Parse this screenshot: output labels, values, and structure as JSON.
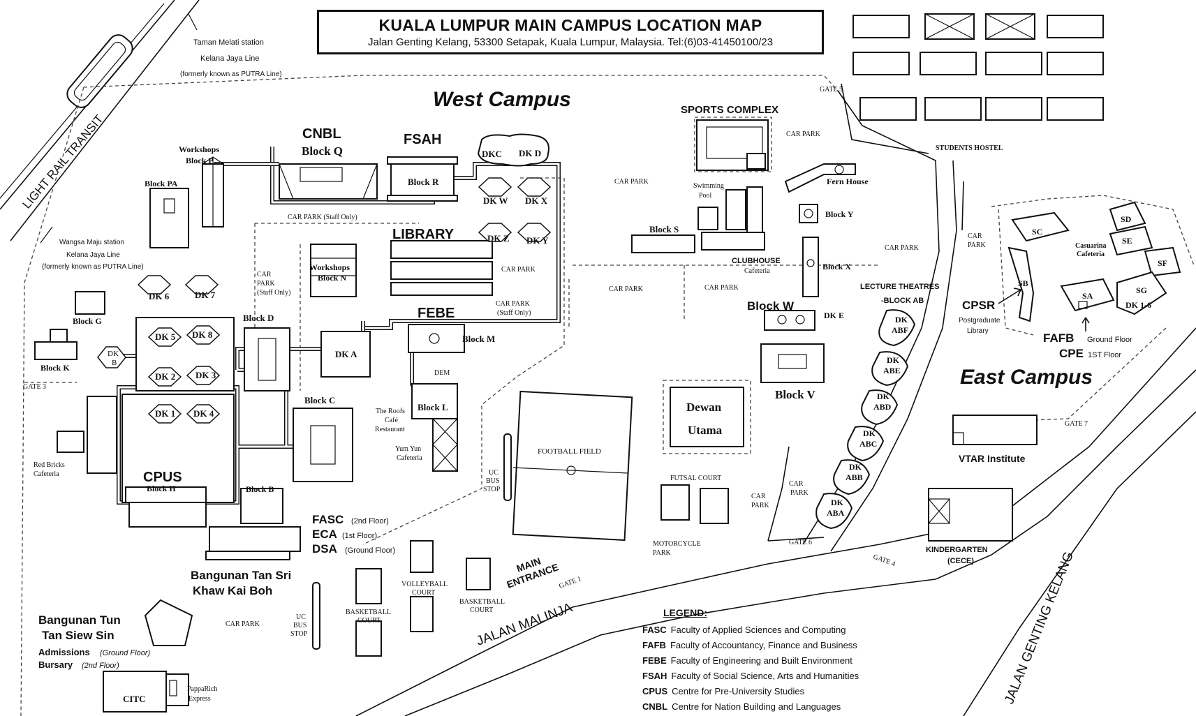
{
  "header": {
    "title": "KUALA LUMPUR MAIN CAMPUS LOCATION MAP",
    "address": "Jalan Genting Kelang, 53300 Setapak, Kuala Lumpur, Malaysia. Tel:(6)03-41450100/23"
  },
  "areas": {
    "west_campus": "West Campus",
    "east_campus": "East Campus"
  },
  "transit": {
    "lrt": "LIGHT RAIL TRANSIT",
    "taman_station": "Taman Melati station",
    "taman_line": "Kelana Jaya Line",
    "taman_formerly": "(formerly known as PUTRA Line)",
    "wangsa_station": "Wangsa Maju station",
    "wangsa_line": "Kelana Jaya Line",
    "wangsa_formerly": "(formerly known as PUTRA Line)"
  },
  "roads": {
    "jalan_malinja": "JALAN MALINJA",
    "jalan_genting_kelang": "JALAN GENTING KELANG",
    "main_entrance_1": "MAIN",
    "main_entrance_2": "ENTRANCE"
  },
  "gates": {
    "gate1": "GATE 1",
    "gate3": "GATE 3",
    "gate4": "GATE 4",
    "gate5": "GATE 5",
    "gate6": "GATE 6",
    "gate7": "GATE 7"
  },
  "buildings": {
    "cnbl": "CNBL",
    "block_q": "Block Q",
    "fsah": "FSAH",
    "block_r": "Block R",
    "dkc": "DKC",
    "dkd": "DK D",
    "dkw": "DK W",
    "dkx": "DK X",
    "dkz": "DK Z",
    "dky": "DK Y",
    "library": "LIBRARY",
    "febe": "FEBE",
    "block_m": "Block M",
    "dem": "DEM",
    "block_l": "Block  L",
    "roofs_1": "The Roofs",
    "roofs_2": "Café",
    "roofs_3": "Restaurant",
    "yumyun_1": "Yum Yun",
    "yumyun_2": "Cafeteria",
    "workshops_p_1": "Workshops",
    "workshops_p_2": "Block P",
    "block_pa": "Block PA",
    "workshops_n_1": "Workshops",
    "workshops_n_2": "Block N",
    "block_d": "Block D",
    "dka": "DK A",
    "block_c": "Block  C",
    "block_g": "Block G",
    "block_k": "Block K",
    "dkb_1": "DK",
    "dkb_2": "B",
    "dk6": "DK 6",
    "dk7": "DK 7",
    "dk5": "DK 5",
    "dk8": "DK 8",
    "dk2": "DK 2",
    "dk3": "DK 3",
    "dk1": "DK 1",
    "dk4": "DK 4",
    "cpus": "CPUS",
    "block_h": "Block H",
    "block_b": "Block B",
    "redbricks_1": "Red Bricks",
    "redbricks_2": "Cafeteria",
    "fasc": "FASC",
    "fasc_floor": "(2nd Floor)",
    "eca": "ECA",
    "eca_floor": "(1st Floor)",
    "dsa": "DSA",
    "dsa_floor": "(Ground Floor)",
    "bangunan_khaw_1": "Bangunan Tan Sri",
    "bangunan_khaw_2": "Khaw Kai Boh",
    "bangunan_tun_1": "Bangunan Tun",
    "bangunan_tun_2": "Tan Siew Sin",
    "admissions": "Admissions",
    "admissions_floor": "(Ground Floor)",
    "bursary": "Bursary",
    "bursary_floor": "(2nd Floor)",
    "citc": "CITC",
    "pappa_1": "PappaRich",
    "pappa_2": "Express",
    "sports_complex": "SPORTS COMPLEX",
    "swimming_1": "Swimming",
    "swimming_2": "Pool",
    "block_s": "Block S",
    "clubhouse": "CLUBHOUSE",
    "clubhouse_caf": "Cafeteria",
    "fern_house": "Fern House",
    "block_y": "Block Y",
    "block_x": "Block X",
    "block_w": "Block W",
    "dke": "DK E",
    "block_v": "Block V",
    "dewan_1": "Dewan",
    "dewan_2": "Utama",
    "football": "FOOTBALL FIELD",
    "futsal": "FUTSAL COURT",
    "motorcycle_1": "MOTORCYCLE",
    "motorcycle_2": "PARK",
    "uc_bus_1": "UC",
    "uc_bus_2": "BUS",
    "uc_bus_3": "STOP",
    "volleyball_1": "VOLLEYBALL",
    "volleyball_2": "COURT",
    "basketball_1": "BASKETBALL",
    "basketball_2": "COURT",
    "lecture_1": "LECTURE  THEATRES",
    "lecture_2": "-BLOCK AB",
    "dkabf_1": "DK",
    "dkabf_2": "ABF",
    "dkabe_1": "DK",
    "dkabe_2": "ABE",
    "dkabd_1": "DK",
    "dkabd_2": "ABD",
    "dkabc_1": "DK",
    "dkabc_2": "ABC",
    "dkabb_1": "DK",
    "dkabb_2": "ABB",
    "dkaba_1": "DK",
    "dkaba_2": "ABA",
    "students_hostel": "STUDENTS HOSTEL",
    "sc": "SC",
    "sd": "SD",
    "se": "SE",
    "sf": "SF",
    "sb": "SB",
    "sa": "SA",
    "sg": "SG",
    "dk16": "DK 1-6",
    "casuarina_1": "Casuarina",
    "casuarina_2": "Cafeteria",
    "cpsr": "CPSR",
    "cpsr_1": "Postgraduate",
    "cpsr_2": "Library",
    "fafb": "FAFB",
    "fafb_floor": "Ground Floor",
    "cpe": "CPE",
    "cpe_floor": "1ST Floor",
    "vtar": "VTAR Institute",
    "kindergarten_1": "KINDERGARTEN",
    "kindergarten_2": "(CECE)"
  },
  "car_parks": {
    "cp_staff_top": "CAR PARK (Staff Only)",
    "cp_staff_left_1": "CAR",
    "cp_staff_left_2": "PARK",
    "cp_staff_left_3": "(Staff Only)",
    "cp_staff_mid_1": "CAR PARK",
    "cp_staff_mid_2": "(Staff Only)",
    "cp": "CAR PARK",
    "cp_split_1": "CAR",
    "cp_split_2": "PARK"
  },
  "legend": {
    "heading": "LEGEND:",
    "items": [
      {
        "abbr": "FASC",
        "text": "Faculty of Applied Sciences and Computing"
      },
      {
        "abbr": "FAFB",
        "text": "Faculty of Accountancy, Finance and Business"
      },
      {
        "abbr": "FEBE",
        "text": "Faculty of Engineering and Built Environment"
      },
      {
        "abbr": "FSAH",
        "text": "Faculty of Social Science, Arts and Humanities"
      },
      {
        "abbr": "CPUS",
        "text": "Centre for Pre-University Studies"
      },
      {
        "abbr": "CNBL",
        "text": "Centre for Nation Building and Languages"
      }
    ]
  }
}
